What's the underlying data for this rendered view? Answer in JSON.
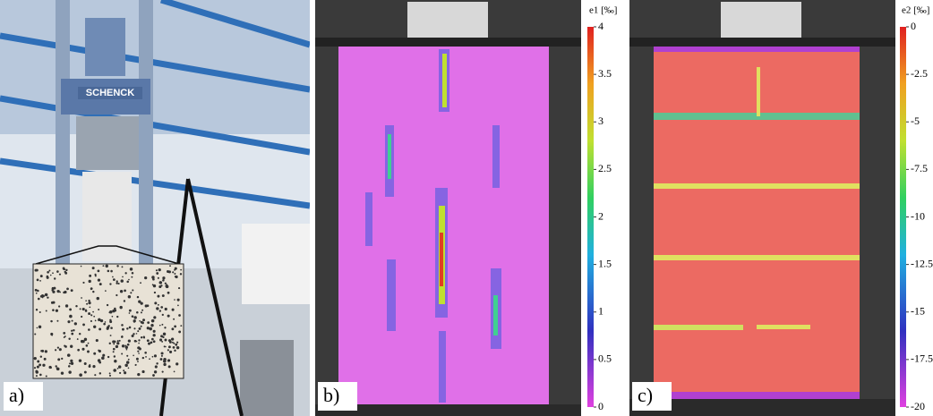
{
  "panels": [
    {
      "label": "a)",
      "machine_label": "SCHENCK"
    },
    {
      "label": "b)",
      "colorbar": {
        "title": "e1 [‰]",
        "lim": [
          0,
          4
        ],
        "ticks": [
          0,
          0.5,
          1,
          1.5,
          2,
          2.5,
          3,
          3.5,
          4
        ]
      }
    },
    {
      "label": "c)",
      "colorbar": {
        "title": "e2 [‰]",
        "lim": [
          -20,
          0
        ],
        "ticks": [
          -20,
          -17.5,
          -15,
          -12.5,
          -10,
          -7.5,
          -5,
          -2.5,
          0
        ]
      }
    }
  ]
}
